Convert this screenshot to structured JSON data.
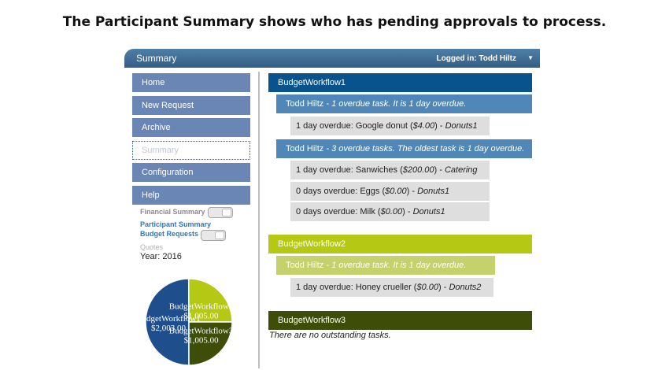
{
  "caption": "The Participant Summary shows who has pending approvals to process.",
  "header": {
    "title": "Summary",
    "logged_in": "Logged in: Todd Hiltz",
    "caret": "▼"
  },
  "sidebar": {
    "nav": [
      {
        "label": "Home"
      },
      {
        "label": "New Request"
      },
      {
        "label": "Archive"
      },
      {
        "label": "Summary"
      },
      {
        "label": "Configuration"
      },
      {
        "label": "Help"
      }
    ],
    "sub": {
      "financial_summary": "Financial Summary",
      "participant_summary": "Participant Summary",
      "budget_requests": "Budget Requests",
      "quotes": "Quotes"
    },
    "year": "Year:  2016"
  },
  "chart_data": {
    "type": "pie",
    "slices": [
      {
        "name": "BudgetWorkflow1",
        "value": 2003.0,
        "label": "$2,003.00",
        "color": "#1f4e8c"
      },
      {
        "name": "BudgetWorkflow2",
        "value": 1005.0,
        "label": "$1,005.00",
        "color": "#b5c914"
      },
      {
        "name": "BudgetWorkflow3",
        "value": 1005.0,
        "label": "$1,005.00",
        "color": "#3e4d08"
      }
    ]
  },
  "workflows": [
    {
      "name": "BudgetWorkflow1",
      "groups": [
        {
          "person": "Todd Hiltz",
          "summary": " - 1 overdue task. It is 1 day overdue.",
          "tasks": [
            {
              "text": "1 day overdue: Google donut (",
              "amount": "$4.00",
              "close": ") - ",
              "category": "Donuts1"
            }
          ]
        },
        {
          "person": "Todd Hiltz",
          "summary": " - 3 overdue tasks. The oldest task is 1 day overdue.",
          "tasks": [
            {
              "text": "1 day overdue: Sanwiches (",
              "amount": "$200.00",
              "close": ") - ",
              "category": "Catering"
            },
            {
              "text": "0 days overdue: Eggs (",
              "amount": "$0.00",
              "close": ") - ",
              "category": "Donuts1"
            },
            {
              "text": "0 days overdue: Milk (",
              "amount": "$0.00",
              "close": ") - ",
              "category": "Donuts1"
            }
          ]
        }
      ]
    },
    {
      "name": "BudgetWorkflow2",
      "groups": [
        {
          "person": "Todd Hiltz",
          "summary": " - 1 overdue task. It is 1 day overdue.",
          "tasks": [
            {
              "text": "1 day overdue: Honey crueller (",
              "amount": "$0.00",
              "close": ") - ",
              "category": "Donuts2"
            }
          ]
        }
      ]
    },
    {
      "name": "BudgetWorkflow3",
      "empty": "There are no outstanding tasks."
    }
  ],
  "colors": {
    "wf1_header": "#08528e",
    "wf1_person": "#4f87b8",
    "wf2_header": "#b5c914",
    "wf2_person": "#c5d16a",
    "wf3_header": "#3e4d08"
  }
}
